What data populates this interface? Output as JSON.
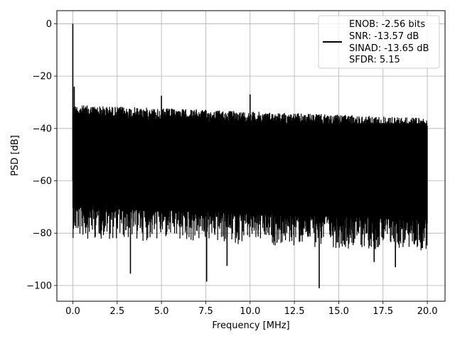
{
  "chart_data": {
    "type": "line",
    "title": "",
    "xlabel": "Frequency [MHz]",
    "ylabel": "PSD [dB]",
    "xlim": [
      -0.9,
      21.0
    ],
    "ylim": [
      -106,
      5
    ],
    "xticks": [
      0.0,
      2.5,
      5.0,
      7.5,
      10.0,
      12.5,
      15.0,
      17.5,
      20.0
    ],
    "xtick_labels": [
      "0.0",
      "2.5",
      "5.0",
      "7.5",
      "10.0",
      "12.5",
      "15.0",
      "17.5",
      "20.0"
    ],
    "yticks": [
      0,
      -20,
      -40,
      -60,
      -80,
      -100
    ],
    "ytick_labels": [
      "0",
      "−20",
      "−40",
      "−60",
      "−80",
      "−100"
    ],
    "grid": true,
    "legend_position": "top-right",
    "series": [
      {
        "name": "",
        "color": "#000000",
        "noise_band": {
          "x_start": 0.0,
          "x_end": 20.0,
          "upper_start": -31,
          "upper_end": -36,
          "lower_start": -70,
          "lower_end": -75
        },
        "peaks": [
          {
            "x": 0.0,
            "y": 0
          },
          {
            "x": 0.08,
            "y": -24
          },
          {
            "x": 5.0,
            "y": -27.5
          },
          {
            "x": 10.0,
            "y": -27
          }
        ],
        "dips": [
          {
            "x": 3.25,
            "y": -95.5
          },
          {
            "x": 7.55,
            "y": -98.5
          },
          {
            "x": 13.9,
            "y": -101
          },
          {
            "x": 8.7,
            "y": -92.5
          },
          {
            "x": 17.0,
            "y": -91
          },
          {
            "x": 18.2,
            "y": -93
          }
        ]
      }
    ],
    "legend_entries": [
      "ENOB: -2.56 bits",
      "SNR: -13.57 dB",
      "SINAD: -13.65 dB",
      "SFDR: 5.15"
    ]
  }
}
